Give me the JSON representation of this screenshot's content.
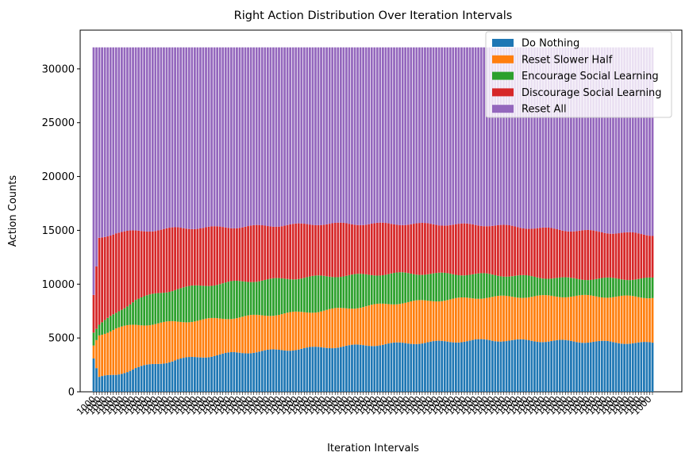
{
  "chart_data": {
    "type": "bar",
    "stacked": true,
    "title": "Right Action Distribution Over Iteration Intervals",
    "xlabel": "Iteration Intervals",
    "ylabel": "Action Counts",
    "ylim": [
      0,
      32000
    ],
    "yticks": [
      0,
      5000,
      10000,
      15000,
      20000,
      25000,
      30000
    ],
    "x_tick_text": "1000",
    "num_intervals": 200,
    "total_per_interval": 32000,
    "legend_position": "upper right",
    "keypoints": [
      {
        "i": 0,
        "do_nothing": 3100,
        "reset_slower_half": 4300,
        "encourage_social": 5500,
        "discourage_social": 9000,
        "reset_all": 12600
      },
      {
        "i": 2,
        "do_nothing": 1300,
        "reset_slower_half": 5300,
        "encourage_social": 6200,
        "discourage_social": 14300,
        "reset_all": 17700
      },
      {
        "i": 8,
        "do_nothing": 1600,
        "reset_slower_half": 5900,
        "encourage_social": 7300,
        "discourage_social": 14800,
        "reset_all": 17200
      },
      {
        "i": 15,
        "do_nothing": 2200,
        "reset_slower_half": 6200,
        "encourage_social": 8600,
        "discourage_social": 14900,
        "reset_all": 17100
      },
      {
        "i": 30,
        "do_nothing": 3000,
        "reset_slower_half": 6500,
        "encourage_social": 9600,
        "discourage_social": 15200,
        "reset_all": 16800
      },
      {
        "i": 50,
        "do_nothing": 3600,
        "reset_slower_half": 6900,
        "encourage_social": 10200,
        "discourage_social": 15300,
        "reset_all": 16700
      },
      {
        "i": 80,
        "do_nothing": 4100,
        "reset_slower_half": 7500,
        "encourage_social": 10700,
        "discourage_social": 15600,
        "reset_all": 16400
      },
      {
        "i": 110,
        "do_nothing": 4500,
        "reset_slower_half": 8300,
        "encourage_social": 11000,
        "discourage_social": 15600,
        "reset_all": 16400
      },
      {
        "i": 140,
        "do_nothing": 4800,
        "reset_slower_half": 8800,
        "encourage_social": 10900,
        "discourage_social": 15500,
        "reset_all": 16500
      },
      {
        "i": 170,
        "do_nothing": 4700,
        "reset_slower_half": 8900,
        "encourage_social": 10500,
        "discourage_social": 15000,
        "reset_all": 17000
      },
      {
        "i": 199,
        "do_nothing": 4500,
        "reset_slower_half": 8800,
        "encourage_social": 10500,
        "discourage_social": 14600,
        "reset_all": 17400
      }
    ],
    "series": [
      {
        "name": "Do Nothing",
        "key": "do_nothing",
        "color": "#1f77b4"
      },
      {
        "name": "Reset Slower Half",
        "key": "reset_slower_half",
        "color": "#ff7f0e"
      },
      {
        "name": "Encourage Social Learning",
        "key": "encourage_social",
        "color": "#2ca02c"
      },
      {
        "name": "Discourage Social Learning",
        "key": "discourage_social",
        "color": "#d62728"
      },
      {
        "name": "Reset All",
        "key": "reset_all",
        "color": "#9467bd"
      }
    ]
  }
}
